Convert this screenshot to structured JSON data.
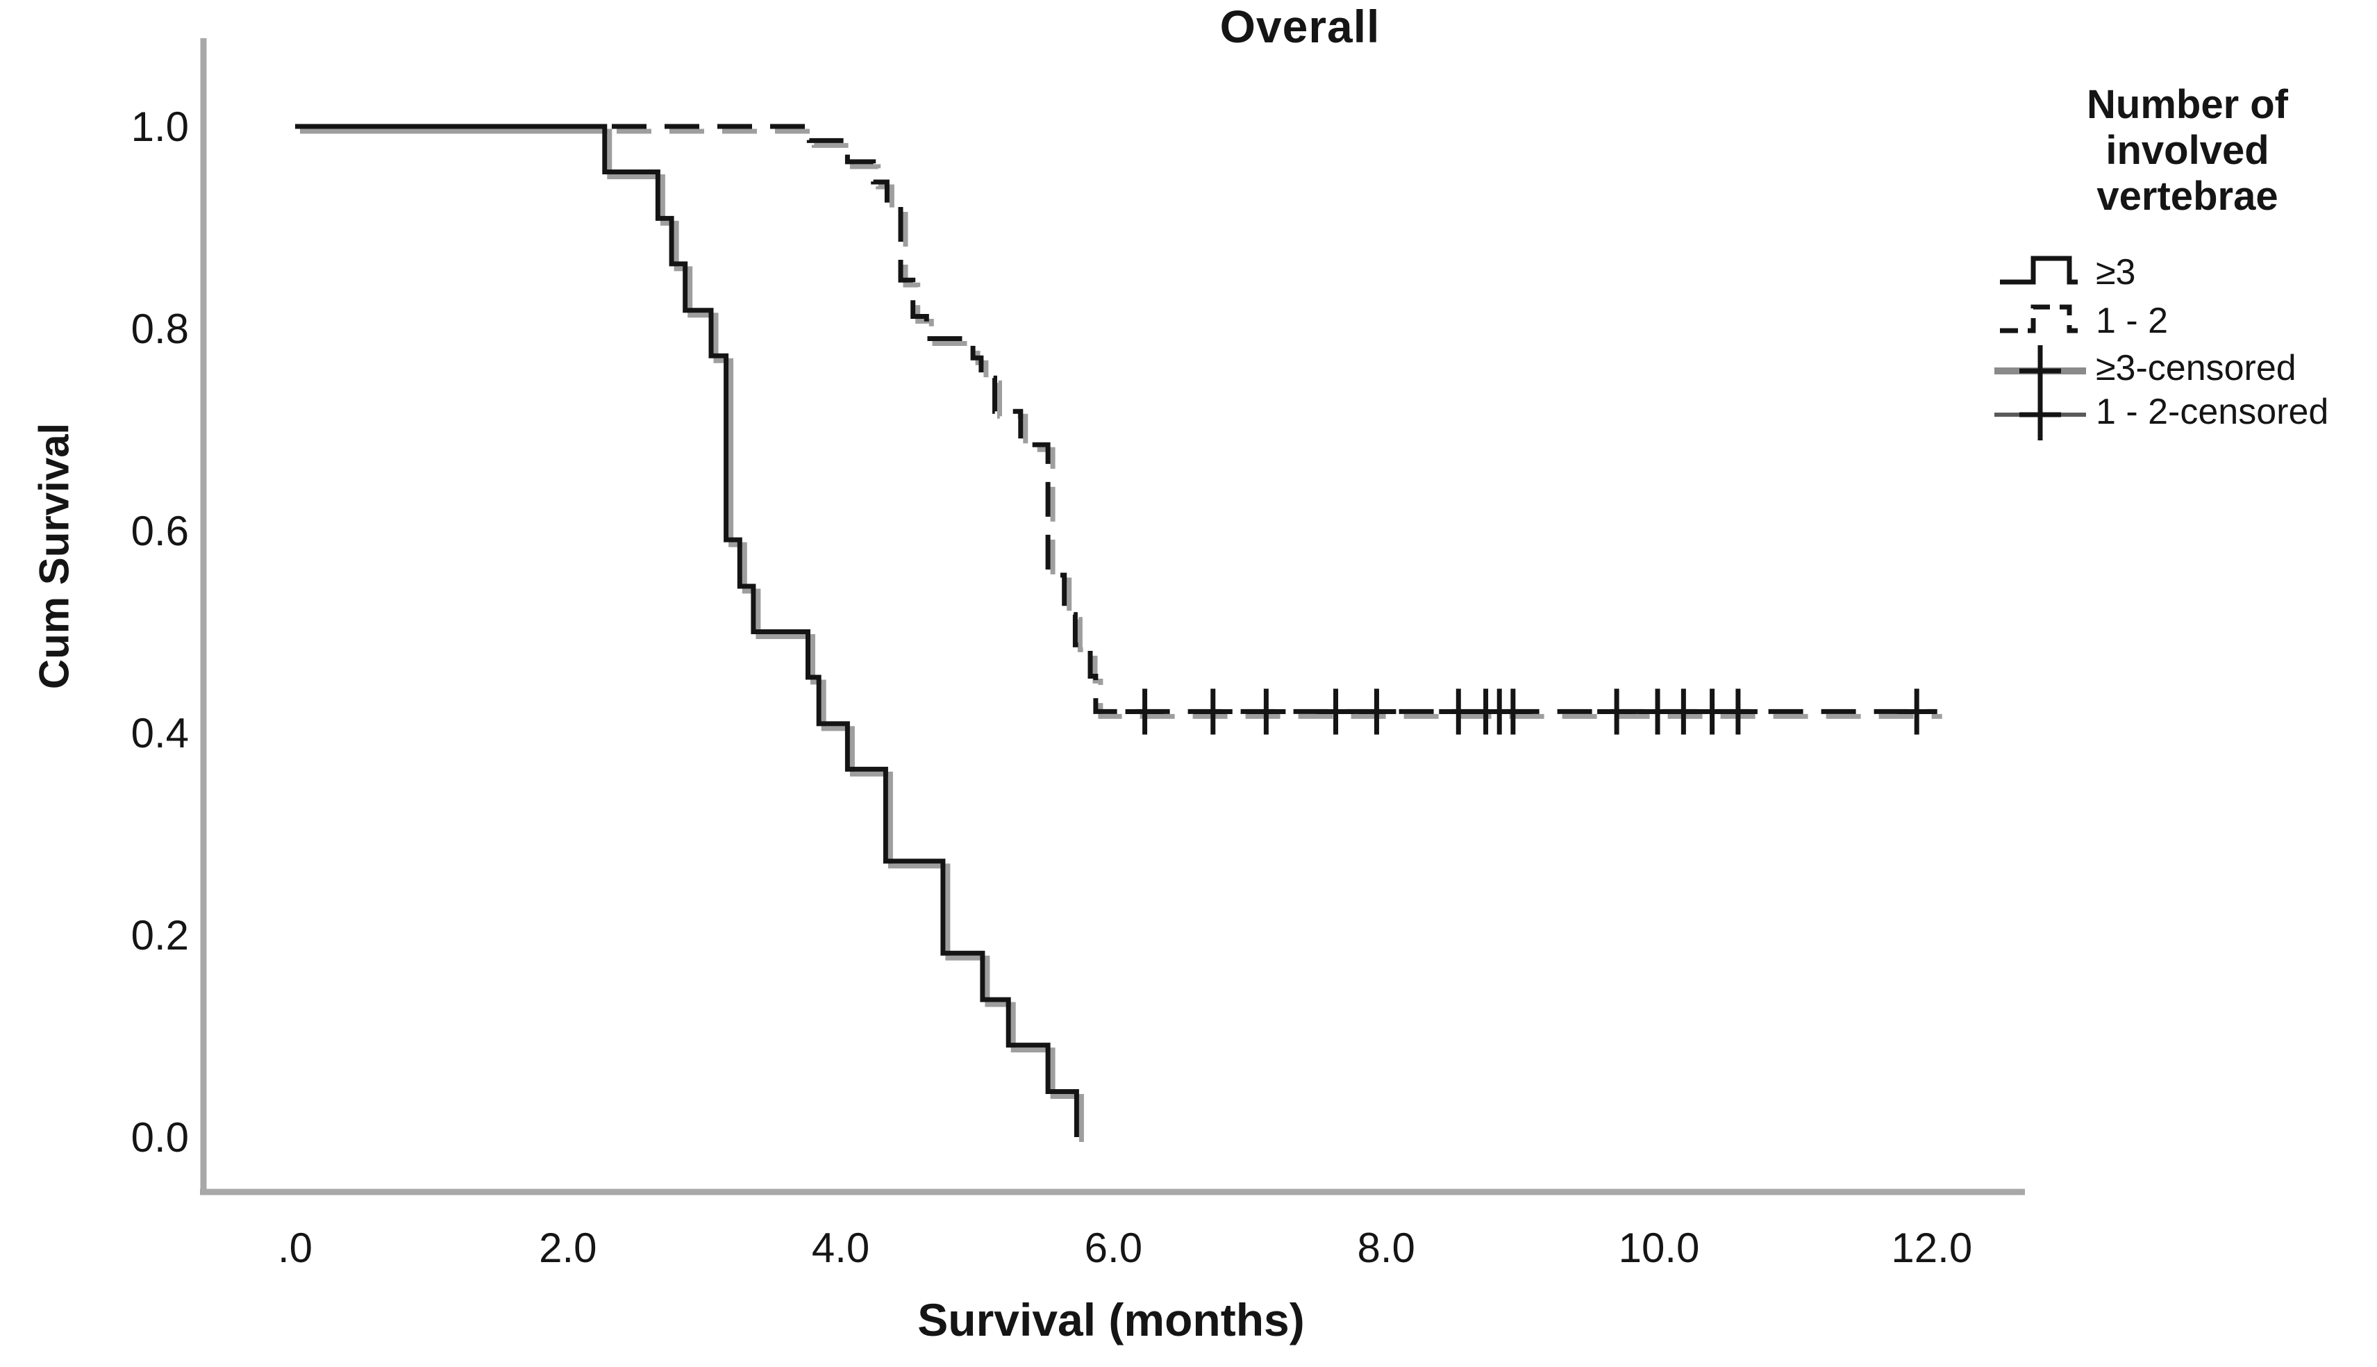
{
  "chart_data": {
    "type": "line",
    "subtype": "kaplan-meier-step",
    "title": "Overall",
    "xlabel": "Survival (months)",
    "ylabel": "Cum Survival",
    "xlim": [
      0,
      12.7
    ],
    "ylim": [
      0.0,
      1.0
    ],
    "grid": false,
    "x_ticks": [
      {
        "label": ".0",
        "value": 0
      },
      {
        "label": "2.0",
        "value": 2
      },
      {
        "label": "4.0",
        "value": 4
      },
      {
        "label": "6.0",
        "value": 6
      },
      {
        "label": "8.0",
        "value": 8
      },
      {
        "label": "10.0",
        "value": 10
      },
      {
        "label": "12.0",
        "value": 12
      }
    ],
    "y_ticks": [
      {
        "label": "1.0",
        "value": 1.0
      },
      {
        "label": "0.8",
        "value": 0.8
      },
      {
        "label": "0.6",
        "value": 0.6
      },
      {
        "label": "0.4",
        "value": 0.4
      },
      {
        "label": "0.2",
        "value": 0.2
      },
      {
        "label": "0.0",
        "value": 0.0
      }
    ],
    "legend": {
      "position": "right",
      "title": "Number of involved vertebrae",
      "title_lines": [
        "Number of",
        "involved",
        "vertebrae"
      ],
      "entries": [
        {
          "label": "≥3",
          "style": "solid-step"
        },
        {
          "label": "1 - 2",
          "style": "dashed-step"
        },
        {
          "label": "≥3-censored",
          "style": "plus-on-line"
        },
        {
          "label": "1 - 2-censored",
          "style": "plus-on-line"
        }
      ]
    },
    "series": [
      {
        "name": "≥3",
        "style": "solid",
        "points": [
          [
            0.0,
            1.0
          ],
          [
            2.27,
            0.955
          ],
          [
            2.66,
            0.909
          ],
          [
            2.76,
            0.864
          ],
          [
            2.86,
            0.818
          ],
          [
            3.05,
            0.773
          ],
          [
            3.16,
            0.591
          ],
          [
            3.26,
            0.545
          ],
          [
            3.36,
            0.5
          ],
          [
            3.76,
            0.455
          ],
          [
            3.84,
            0.409
          ],
          [
            4.05,
            0.364
          ],
          [
            4.33,
            0.273
          ],
          [
            4.75,
            0.182
          ],
          [
            5.04,
            0.136
          ],
          [
            5.23,
            0.091
          ],
          [
            5.52,
            0.045
          ],
          [
            5.73,
            0.0
          ]
        ],
        "end_t": null,
        "censored_t": []
      },
      {
        "name": "1 - 2",
        "style": "dashed",
        "points": [
          [
            0.0,
            1.0
          ],
          [
            3.77,
            0.986
          ],
          [
            4.05,
            0.965
          ],
          [
            4.24,
            0.945
          ],
          [
            4.34,
            0.921
          ],
          [
            4.44,
            0.848
          ],
          [
            4.53,
            0.812
          ],
          [
            4.63,
            0.79
          ],
          [
            4.97,
            0.771
          ],
          [
            5.03,
            0.751
          ],
          [
            5.13,
            0.718
          ],
          [
            5.32,
            0.685
          ],
          [
            5.52,
            0.556
          ],
          [
            5.64,
            0.517
          ],
          [
            5.72,
            0.487
          ],
          [
            5.83,
            0.456
          ],
          [
            5.87,
            0.421
          ]
        ],
        "end_t": 12.04,
        "censored_t": [
          6.23,
          6.73,
          7.12,
          7.63,
          7.93,
          8.53,
          8.73,
          8.83,
          8.93,
          9.69,
          9.99,
          10.18,
          10.39,
          10.58,
          11.89
        ],
        "censored_v": 0.421
      }
    ],
    "colors": {
      "curve": "#141414",
      "curve_shadow": "#9e9e9e",
      "axis_line": "#a8a8a8",
      "background": "#ffffff",
      "text": "#151515"
    }
  }
}
